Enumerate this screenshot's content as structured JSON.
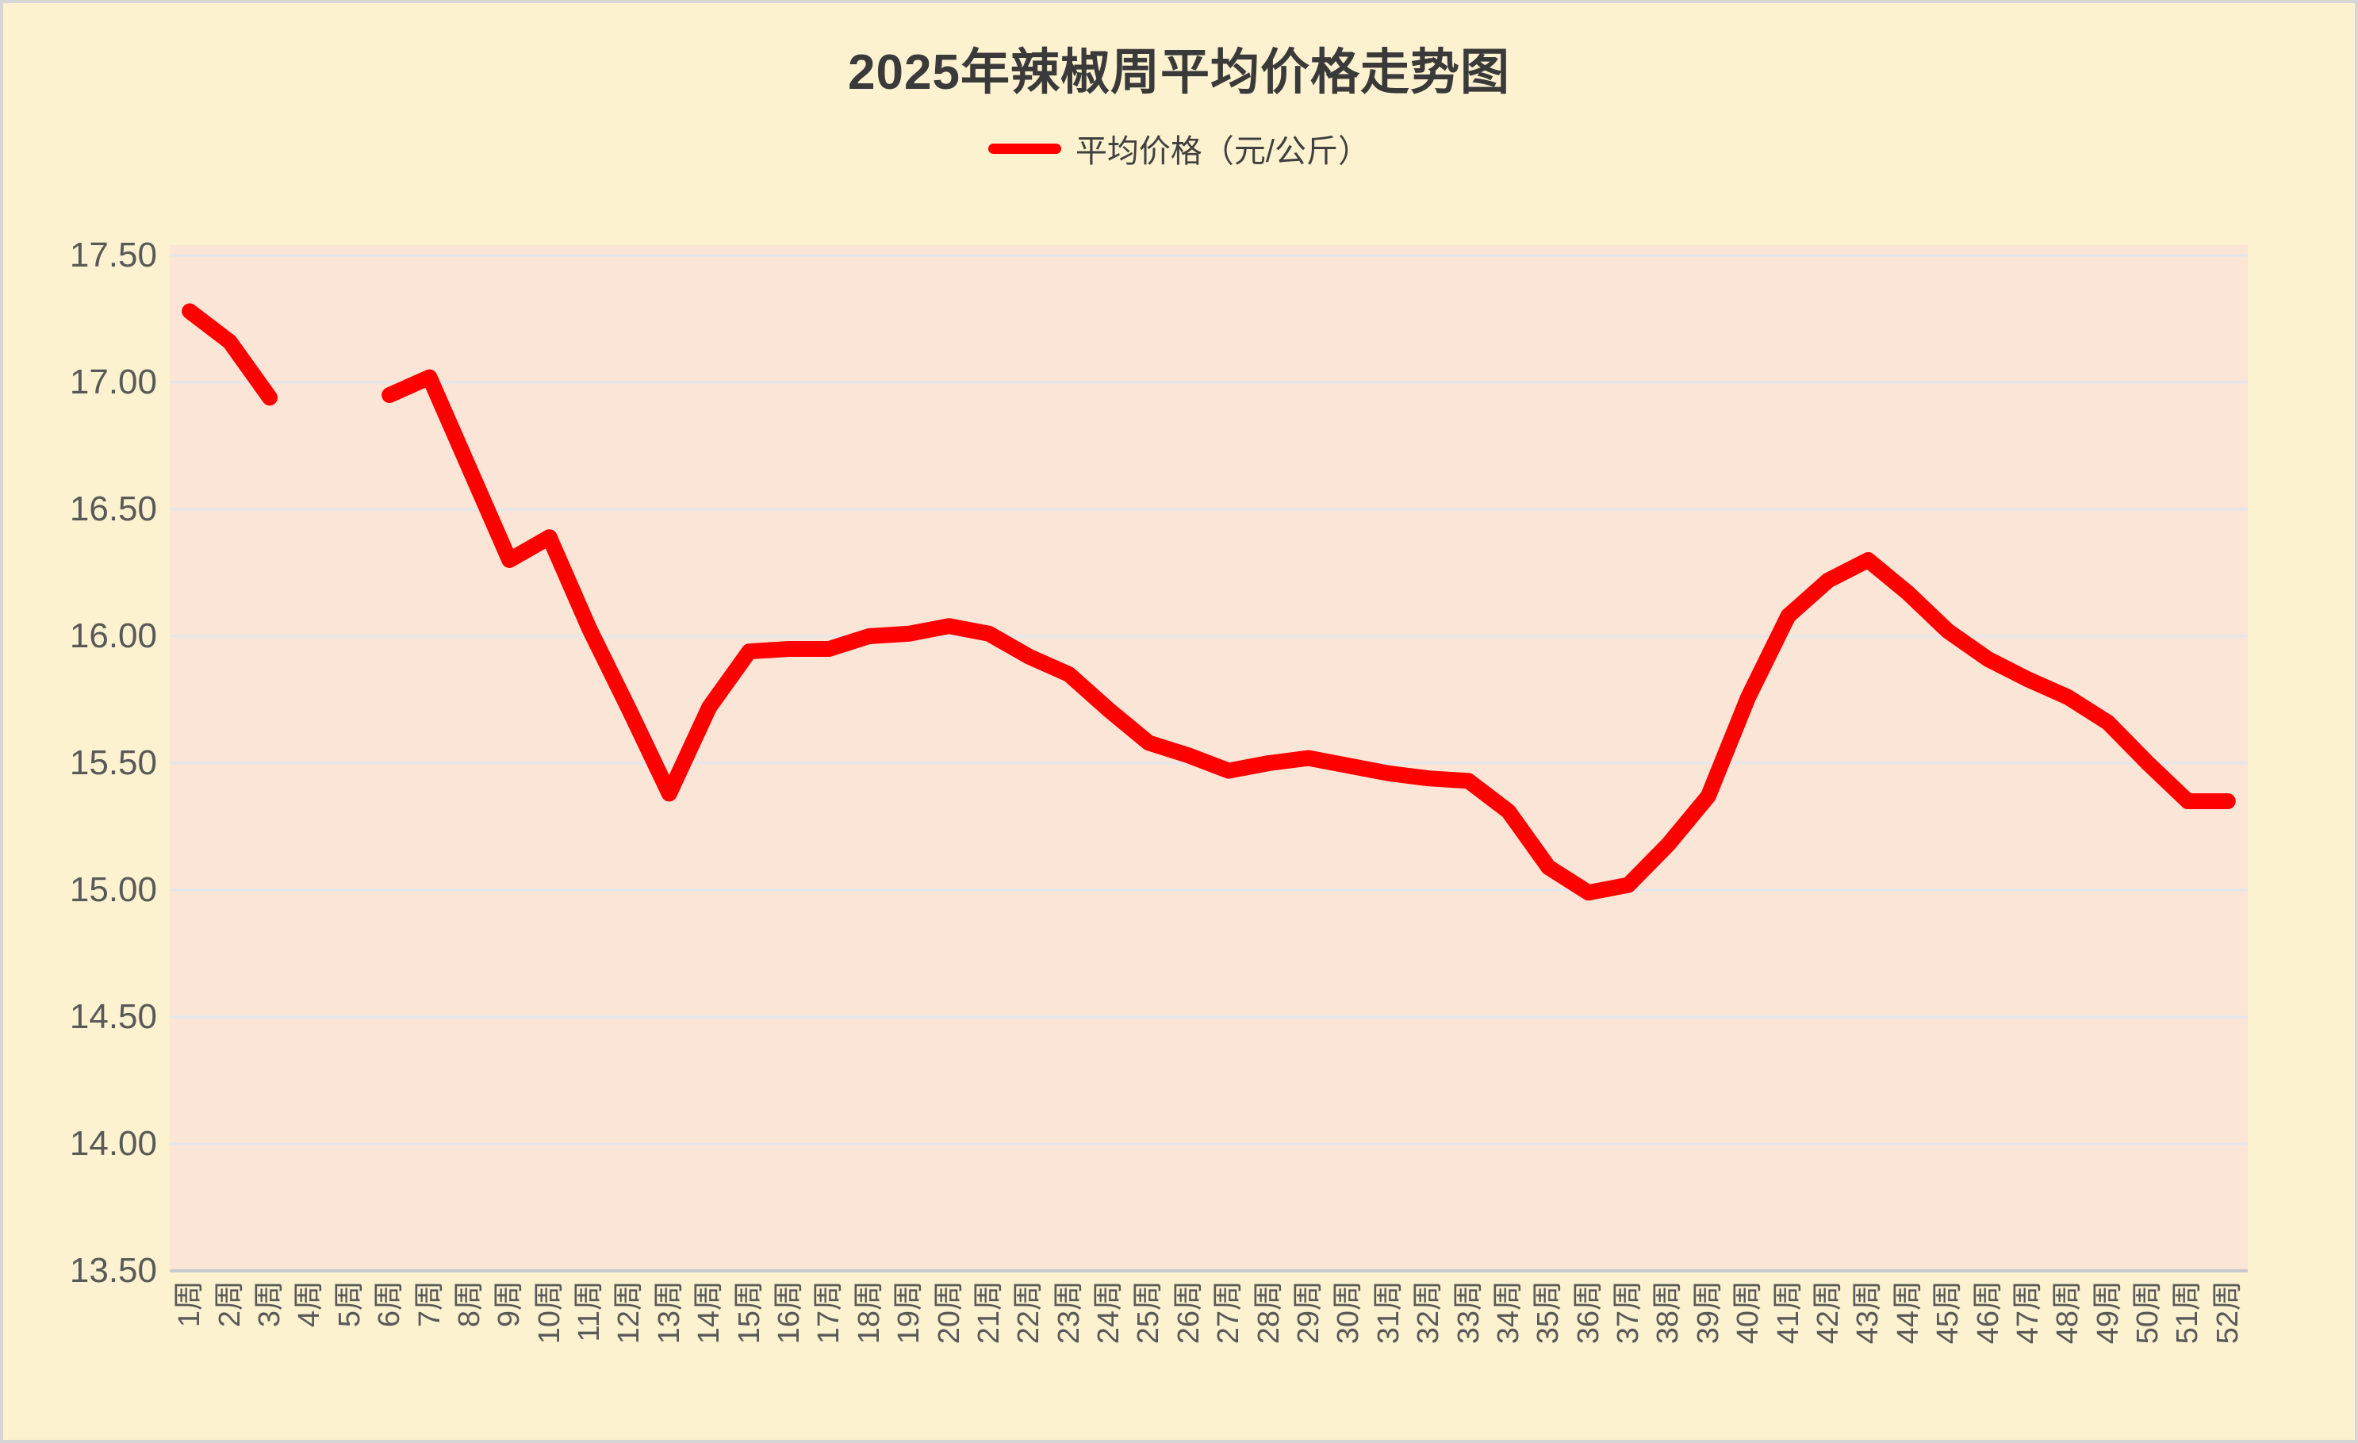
{
  "title": "2025年辣椒周平均价格走势图",
  "legend": {
    "label": "平均价格（元/公斤）"
  },
  "colors": {
    "background": "#fdf2cf",
    "plot_background": "#fae5d6",
    "line": "#ff0000",
    "gridline": "#e3e7ec",
    "axis_line": "#c8cbce",
    "title_text": "#3a3a3a",
    "label_text": "#595959",
    "border": "#d6d6d6"
  },
  "chart_data": {
    "type": "line",
    "title": "2025年辣椒周平均价格走势图",
    "xlabel": "",
    "ylabel": "",
    "legend_position": "top",
    "grid": "horizontal",
    "x_label_rotation": -90,
    "ylim": [
      13.5,
      17.5
    ],
    "ytick_step": 0.5,
    "ytick_labels": [
      "17.50",
      "17.00",
      "16.50",
      "16.00",
      "15.50",
      "15.00",
      "14.50",
      "14.00",
      "13.50"
    ],
    "categories": [
      "1周",
      "2周",
      "3周",
      "4周",
      "5周",
      "6周",
      "7周",
      "8周",
      "9周",
      "10周",
      "11周",
      "12周",
      "13周",
      "14周",
      "15周",
      "16周",
      "17周",
      "18周",
      "19周",
      "20周",
      "21周",
      "22周",
      "23周",
      "24周",
      "25周",
      "26周",
      "27周",
      "28周",
      "29周",
      "30周",
      "31周",
      "32周",
      "33周",
      "34周",
      "35周",
      "36周",
      "37周",
      "38周",
      "39周",
      "40周",
      "41周",
      "42周",
      "43周",
      "44周",
      "45周",
      "46周",
      "47周",
      "48周",
      "49周",
      "50周",
      "51周",
      "52周"
    ],
    "series": [
      {
        "name": "平均价格（元/公斤）",
        "values": [
          17.28,
          17.16,
          16.94,
          null,
          null,
          16.95,
          17.02,
          16.66,
          16.3,
          16.39,
          16.03,
          15.71,
          15.38,
          15.72,
          15.94,
          15.95,
          15.95,
          16.0,
          16.01,
          16.04,
          16.01,
          15.92,
          15.85,
          15.71,
          15.58,
          15.53,
          15.47,
          15.5,
          15.52,
          15.49,
          15.46,
          15.44,
          15.43,
          15.31,
          15.09,
          14.99,
          15.02,
          15.18,
          15.37,
          15.76,
          16.08,
          16.22,
          16.3,
          16.17,
          16.02,
          15.91,
          15.83,
          15.76,
          15.66,
          15.5,
          15.35,
          15.35
        ]
      }
    ]
  }
}
